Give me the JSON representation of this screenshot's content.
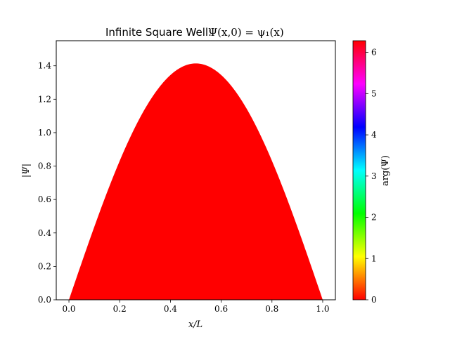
{
  "chart_data": {
    "type": "area",
    "title_text": "Infinite Square Well:",
    "title_math": "Ψ(x,0) = ψ₁(x)",
    "xlabel": "x/L",
    "ylabel": "|Ψ|",
    "xlim": [
      -0.05,
      1.05
    ],
    "ylim": [
      0.0,
      1.55
    ],
    "x_ticks": [
      0.0,
      0.2,
      0.4,
      0.6,
      0.8,
      1.0
    ],
    "x_tick_labels": [
      "0.0",
      "0.2",
      "0.4",
      "0.6",
      "0.8",
      "1.0"
    ],
    "y_ticks": [
      0.0,
      0.2,
      0.4,
      0.6,
      0.8,
      1.0,
      1.2,
      1.4
    ],
    "y_tick_labels": [
      "0.0",
      "0.2",
      "0.4",
      "0.6",
      "0.8",
      "1.0",
      "1.2",
      "1.4"
    ],
    "series": [
      {
        "x": [
          0.0,
          0.05,
          0.1,
          0.15,
          0.2,
          0.25,
          0.3,
          0.35,
          0.4,
          0.45,
          0.5,
          0.55,
          0.6,
          0.65,
          0.7,
          0.75,
          0.8,
          0.85,
          0.9,
          0.95,
          1.0
        ],
        "y": [
          0.0,
          0.221,
          0.437,
          0.642,
          0.831,
          1.0,
          1.144,
          1.26,
          1.345,
          1.397,
          1.414,
          1.397,
          1.345,
          1.26,
          1.144,
          1.0,
          0.831,
          0.642,
          0.437,
          0.221,
          0.0
        ],
        "phase": 0,
        "fill_color": "#ff0000"
      }
    ],
    "colorbar": {
      "label": "arg(Ψ)",
      "range": [
        0,
        6.283
      ],
      "ticks": [
        0,
        1,
        2,
        3,
        4,
        5,
        6
      ],
      "tick_labels": [
        "0",
        "1",
        "2",
        "3",
        "4",
        "5",
        "6"
      ],
      "colormap": "hsv"
    }
  }
}
